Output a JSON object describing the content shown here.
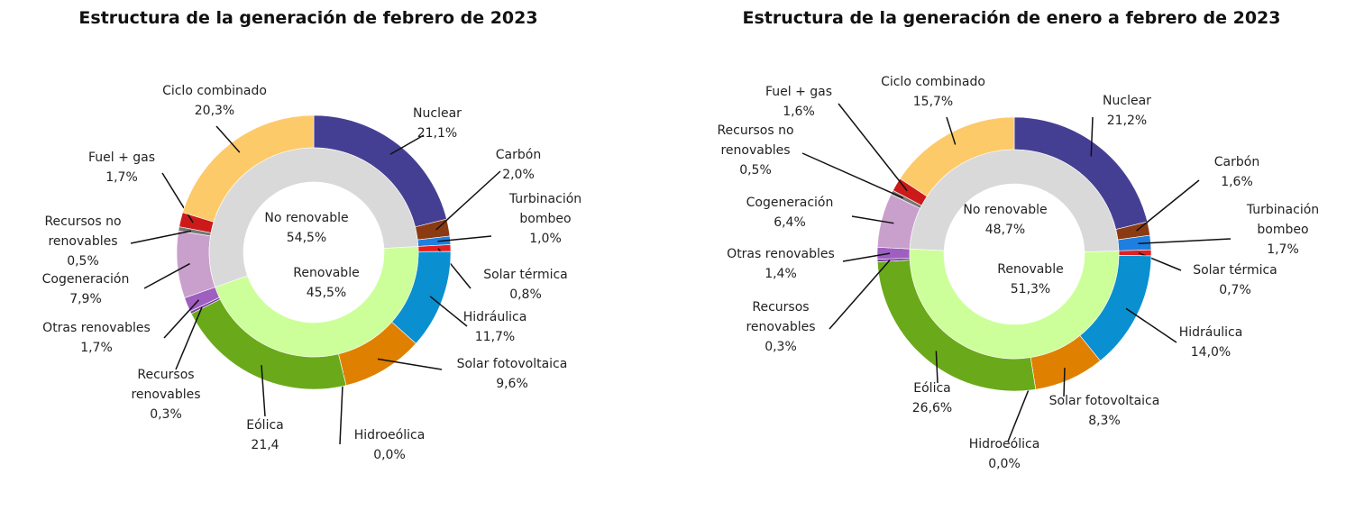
{
  "chart_data": [
    {
      "type": "donut",
      "title": "Estructura de la generación de febrero de 2023",
      "categories": [
        "Nuclear",
        "Carbón",
        "Turbinación bombeo",
        "Solar térmica",
        "Hidráulica",
        "Solar fotovoltaica",
        "Hidroeólica",
        "Eólica",
        "Recursos renovables",
        "Otras renovables",
        "Cogeneración",
        "Recursos no renovables",
        "Fuel + gas",
        "Ciclo combinado"
      ],
      "values": [
        21.1,
        2.0,
        1.0,
        0.8,
        11.7,
        9.6,
        0.0,
        21.4,
        0.3,
        1.7,
        7.9,
        0.5,
        1.7,
        20.3
      ],
      "value_labels": [
        "21,1%",
        "2,0%",
        "1,0%",
        "0,8%",
        "11,7%",
        "9,6%",
        "0,0%",
        "21,4",
        "0,3%",
        "1,7%",
        "7,9%",
        "0,5%",
        "1,7%",
        "20,3%"
      ],
      "colors": [
        "#453f94",
        "#8b3a12",
        "#1e7fe0",
        "#e02020",
        "#0a8fd0",
        "#e08000",
        "#2f8fcf",
        "#6aaa1a",
        "#7a3fa0",
        "#9e5fc0",
        "#c9a0cc",
        "#777777",
        "#cc1a1a",
        "#fdca6a"
      ],
      "inner": {
        "categories": [
          "No renovable",
          "Renovable"
        ],
        "values": [
          54.5,
          45.5
        ],
        "value_labels": [
          "54,5%",
          "45,5%"
        ],
        "colors": [
          "#d9d9d9",
          "#ccff99"
        ]
      }
    },
    {
      "type": "donut",
      "title": "Estructura de la generación de enero a febrero de 2023",
      "categories": [
        "Nuclear",
        "Carbón",
        "Turbinación bombeo",
        "Solar térmica",
        "Hidráulica",
        "Solar fotovoltaica",
        "Hidroeólica",
        "Eólica",
        "Recursos renovables",
        "Otras renovables",
        "Cogeneración",
        "Recursos no renovables",
        "Fuel + gas",
        "Ciclo combinado"
      ],
      "values": [
        21.2,
        1.6,
        1.7,
        0.7,
        14.0,
        8.3,
        0.0,
        26.6,
        0.3,
        1.4,
        6.4,
        0.5,
        1.6,
        15.7
      ],
      "value_labels": [
        "21,2%",
        "1,6%",
        "1,7%",
        "0,7%",
        "14,0%",
        "8,3%",
        "0,0%",
        "26,6%",
        "0,3%",
        "1,4%",
        "6,4%",
        "0,5%",
        "1,6%",
        "15,7%"
      ],
      "colors": [
        "#453f94",
        "#8b3a12",
        "#1e7fe0",
        "#e02020",
        "#0a8fd0",
        "#e08000",
        "#2f8fcf",
        "#6aaa1a",
        "#7a3fa0",
        "#9e5fc0",
        "#c9a0cc",
        "#777777",
        "#cc1a1a",
        "#fdca6a"
      ],
      "inner": {
        "categories": [
          "No renovable",
          "Renovable"
        ],
        "values": [
          48.7,
          51.3
        ],
        "value_labels": [
          "48,7%",
          "51,3%"
        ],
        "colors": [
          "#d9d9d9",
          "#ccff99"
        ]
      }
    }
  ]
}
